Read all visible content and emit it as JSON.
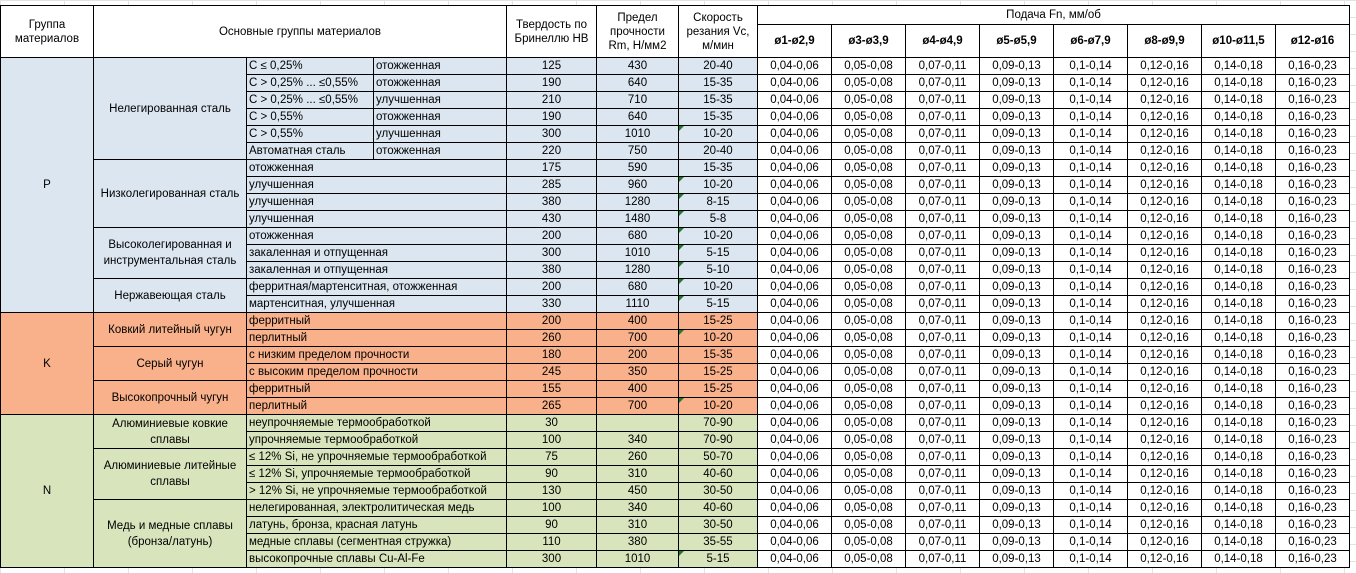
{
  "header": {
    "group": "Группа материалов",
    "main_groups": "Основные группы материалов",
    "hardness": "Твердость по Бринеллю HB",
    "strength": "Предел прочности Rm, Н/мм2",
    "speed": "Скорость резания Vc, м/мин",
    "feed": "Подача Fn, мм/об",
    "diameters": [
      "ø1-ø2,9",
      "ø3-ø3,9",
      "ø4-ø4,9",
      "ø5-ø5,9",
      "ø6-ø7,9",
      "ø8-ø9,9",
      "ø10-ø11,5",
      "ø12-ø16"
    ]
  },
  "feed_values": [
    "0,04-0,06",
    "0,05-0,08",
    "0,07-0,11",
    "0,09-0,13",
    "0,1-0,14",
    "0,12-0,16",
    "0,14-0,18",
    "0,16-0,23"
  ],
  "colors": {
    "P": "#dce6f1",
    "K": "#f8b18a",
    "N": "#d8e4bc"
  },
  "groups": [
    {
      "code": "P",
      "subgroups": [
        {
          "name": "Нелегированная сталь",
          "rows": [
            {
              "cond": "C ≤ 0,25%",
              "treat": "отожженная",
              "hb": "125",
              "rm": "430",
              "vc": "20-40",
              "flag": false
            },
            {
              "cond": "C > 0,25% ... ≤0,55%",
              "treat": "отожженная",
              "hb": "190",
              "rm": "640",
              "vc": "15-35",
              "flag": false
            },
            {
              "cond": "C > 0,25% ... ≤0,55%",
              "treat": "улучшенная",
              "hb": "210",
              "rm": "710",
              "vc": "15-35",
              "flag": false
            },
            {
              "cond": "C > 0,55%",
              "treat": "отожженная",
              "hb": "190",
              "rm": "640",
              "vc": "15-35",
              "flag": false
            },
            {
              "cond": "C > 0,55%",
              "treat": "улучшенная",
              "hb": "300",
              "rm": "1010",
              "vc": "10-20",
              "flag": true
            },
            {
              "cond": "Автоматная сталь",
              "treat": "отожженная",
              "hb": "220",
              "rm": "750",
              "vc": "20-40",
              "flag": false
            }
          ]
        },
        {
          "name": "Низколегированная сталь",
          "rows": [
            {
              "cond": "отожженная",
              "hb": "175",
              "rm": "590",
              "vc": "15-35",
              "flag": false
            },
            {
              "cond": "улучшенная",
              "hb": "285",
              "rm": "960",
              "vc": "10-20",
              "flag": true
            },
            {
              "cond": "улучшенная",
              "hb": "380",
              "rm": "1280",
              "vc": "8-15",
              "flag": true
            },
            {
              "cond": "улучшенная",
              "hb": "430",
              "rm": "1480",
              "vc": "5-8",
              "flag": true
            }
          ]
        },
        {
          "name": "Высоколегированная и инструментальная сталь",
          "rows": [
            {
              "cond": "отожженная",
              "hb": "200",
              "rm": "680",
              "vc": "10-20",
              "flag": true
            },
            {
              "cond": "закаленная и отпущенная",
              "hb": "300",
              "rm": "1010",
              "vc": "5-15",
              "flag": true
            },
            {
              "cond": "закаленная и отпущенная",
              "hb": "380",
              "rm": "1280",
              "vc": "5-10",
              "flag": true
            }
          ]
        },
        {
          "name": "Нержавеющая сталь",
          "rows": [
            {
              "cond": "ферритная/мартенситная, отожженная",
              "hb": "200",
              "rm": "680",
              "vc": "10-20",
              "flag": true
            },
            {
              "cond": "мартенситная, улучшенная",
              "hb": "330",
              "rm": "1110",
              "vc": "5-15",
              "flag": true
            }
          ]
        }
      ]
    },
    {
      "code": "K",
      "subgroups": [
        {
          "name": "Ковкий литейный чугун",
          "rows": [
            {
              "cond": "ферритный",
              "hb": "200",
              "rm": "400",
              "vc": "15-25",
              "flag": false
            },
            {
              "cond": "перлитный",
              "hb": "260",
              "rm": "700",
              "vc": "10-20",
              "flag": true
            }
          ]
        },
        {
          "name": "Серый чугун",
          "rows": [
            {
              "cond": "с низким пределом прочности",
              "hb": "180",
              "rm": "200",
              "vc": "15-35",
              "flag": false
            },
            {
              "cond": "с высоким пределом прочности",
              "hb": "245",
              "rm": "350",
              "vc": "15-25",
              "flag": false
            }
          ]
        },
        {
          "name": "Высокопрочный чугун",
          "rows": [
            {
              "cond": "ферритный",
              "hb": "155",
              "rm": "400",
              "vc": "15-25",
              "flag": false
            },
            {
              "cond": "перлитный",
              "hb": "265",
              "rm": "700",
              "vc": "10-20",
              "flag": true
            }
          ]
        }
      ]
    },
    {
      "code": "N",
      "subgroups": [
        {
          "name": "Алюминиевые ковкие сплавы",
          "rows": [
            {
              "cond": "неупрочняемые термообработкой",
              "hb": "30",
              "rm": "",
              "vc": "70-90",
              "flag": false
            },
            {
              "cond": "упрочняемые термообработкой",
              "hb": "100",
              "rm": "340",
              "vc": "70-90",
              "flag": false
            }
          ]
        },
        {
          "name": "Алюминиевые литейные сплавы",
          "rows": [
            {
              "cond": "≤ 12% Si, не упрочняемые термообработкой",
              "hb": "75",
              "rm": "260",
              "vc": "50-70",
              "flag": false
            },
            {
              "cond": "≤ 12% Si, упрочняемые термообработкой",
              "hb": "90",
              "rm": "310",
              "vc": "40-60",
              "flag": false
            },
            {
              "cond": "> 12% Si, не упрочняемые термообработкой",
              "hb": "130",
              "rm": "450",
              "vc": "30-50",
              "flag": false
            }
          ]
        },
        {
          "name": "Медь и медные сплавы (бронза/латунь)",
          "rows": [
            {
              "cond": "нелегированная, электролитическая медь",
              "hb": "100",
              "rm": "340",
              "vc": "40-60",
              "flag": false
            },
            {
              "cond": "латунь, бронза, красная латунь",
              "hb": "90",
              "rm": "310",
              "vc": "30-50",
              "flag": false
            },
            {
              "cond": "медные сплавы (сегментная стружка)",
              "hb": "110",
              "rm": "380",
              "vc": "35-55",
              "flag": false
            },
            {
              "cond": "высокопрочные сплавы Cu-Al-Fe",
              "hb": "300",
              "rm": "1010",
              "vc": "5-15",
              "flag": true
            }
          ]
        }
      ]
    }
  ]
}
